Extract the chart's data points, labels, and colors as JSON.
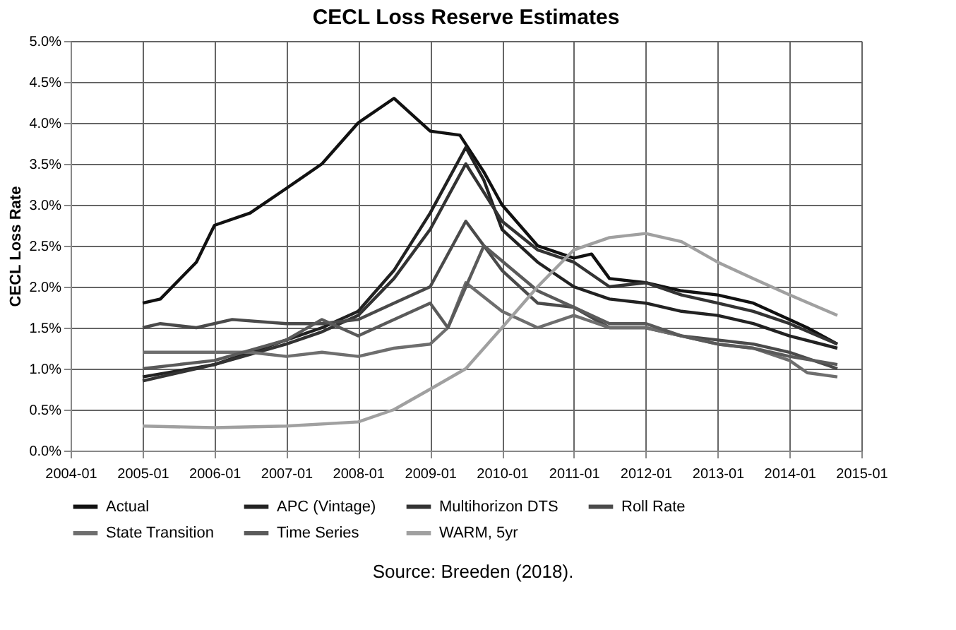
{
  "chart_data": {
    "type": "line",
    "title": "CECL Loss Reserve Estimates",
    "ylabel": "CECL Loss Rate",
    "annotations": [
      "Source: Breeden (2018)."
    ],
    "xlim": [
      "2004-01",
      "2015-01"
    ],
    "xticks": [
      "2004-01",
      "2005-01",
      "2006-01",
      "2007-01",
      "2008-01",
      "2009-01",
      "2010-01",
      "2011-01",
      "2012-01",
      "2013-01",
      "2014-01",
      "2015-01"
    ],
    "ylim": [
      0,
      5
    ],
    "yticks": [
      {
        "value": 0,
        "label": "0.0%"
      },
      {
        "value": 0.5,
        "label": "0.5%"
      },
      {
        "value": 1,
        "label": "1.0%"
      },
      {
        "value": 1.5,
        "label": "1.5%"
      },
      {
        "value": 2,
        "label": "2.0%"
      },
      {
        "value": 2.5,
        "label": "2.5%"
      },
      {
        "value": 3,
        "label": "3.0%"
      },
      {
        "value": 3.5,
        "label": "3.5%"
      },
      {
        "value": 4,
        "label": "4.0%"
      },
      {
        "value": 4.5,
        "label": "4.5%"
      },
      {
        "value": 5,
        "label": "5.0%"
      }
    ],
    "grid": true,
    "legend": "bottom",
    "line_style": "solid",
    "marker": "none",
    "series": [
      {
        "name": "Actual",
        "color": "#111111",
        "x": [
          "2005-01",
          "2005-04",
          "2005-10",
          "2006-01",
          "2006-07",
          "2007-01",
          "2007-07",
          "2008-01",
          "2008-07",
          "2009-01",
          "2009-06",
          "2009-10",
          "2010-01",
          "2010-07",
          "2011-01",
          "2011-04",
          "2011-07",
          "2012-01",
          "2012-07",
          "2013-01",
          "2013-07",
          "2014-01",
          "2014-04",
          "2014-09"
        ],
        "values": [
          1.8,
          1.85,
          2.3,
          2.75,
          2.9,
          3.2,
          3.5,
          4.0,
          4.3,
          3.9,
          3.85,
          3.4,
          3.0,
          2.5,
          2.35,
          2.4,
          2.1,
          2.05,
          1.95,
          1.9,
          1.8,
          1.6,
          1.5,
          1.3
        ]
      },
      {
        "name": "APC (Vintage)",
        "color": "#222222",
        "x": [
          "2005-01",
          "2006-01",
          "2007-01",
          "2007-07",
          "2008-01",
          "2008-07",
          "2009-01",
          "2009-07",
          "2009-10",
          "2010-01",
          "2010-07",
          "2011-01",
          "2011-07",
          "2012-01",
          "2012-07",
          "2013-01",
          "2013-07",
          "2014-01",
          "2014-09"
        ],
        "values": [
          0.9,
          1.05,
          1.35,
          1.5,
          1.7,
          2.2,
          2.9,
          3.7,
          3.3,
          2.7,
          2.3,
          2.0,
          1.85,
          1.8,
          1.7,
          1.65,
          1.55,
          1.4,
          1.25
        ]
      },
      {
        "name": "Multihorizon DTS",
        "color": "#333333",
        "x": [
          "2005-01",
          "2006-01",
          "2007-01",
          "2007-07",
          "2008-01",
          "2008-07",
          "2009-01",
          "2009-07",
          "2010-01",
          "2010-07",
          "2011-01",
          "2011-07",
          "2012-01",
          "2012-07",
          "2013-01",
          "2013-07",
          "2014-01",
          "2014-09"
        ],
        "values": [
          0.85,
          1.05,
          1.3,
          1.45,
          1.65,
          2.1,
          2.7,
          3.5,
          2.8,
          2.45,
          2.3,
          2.0,
          2.05,
          1.9,
          1.8,
          1.7,
          1.55,
          1.3
        ]
      },
      {
        "name": "Roll Rate",
        "color": "#4a4a4a",
        "x": [
          "2005-01",
          "2005-04",
          "2005-10",
          "2006-04",
          "2007-01",
          "2007-07",
          "2008-01",
          "2008-07",
          "2009-01",
          "2009-07",
          "2010-01",
          "2010-07",
          "2011-01",
          "2011-07",
          "2012-01",
          "2012-07",
          "2013-01",
          "2013-07",
          "2014-01",
          "2014-09"
        ],
        "values": [
          1.5,
          1.55,
          1.5,
          1.6,
          1.55,
          1.55,
          1.6,
          1.8,
          2.0,
          2.8,
          2.2,
          1.8,
          1.75,
          1.5,
          1.5,
          1.4,
          1.35,
          1.3,
          1.2,
          1.0
        ]
      },
      {
        "name": "State Transition",
        "color": "#6e6e6e",
        "x": [
          "2005-01",
          "2005-07",
          "2006-07",
          "2007-01",
          "2007-07",
          "2008-01",
          "2008-07",
          "2009-01",
          "2009-04",
          "2009-07",
          "2010-01",
          "2010-07",
          "2011-01",
          "2011-07",
          "2012-01",
          "2012-07",
          "2013-01",
          "2013-07",
          "2014-01",
          "2014-04",
          "2014-09"
        ],
        "values": [
          1.2,
          1.2,
          1.2,
          1.15,
          1.2,
          1.15,
          1.25,
          1.3,
          1.5,
          2.05,
          1.7,
          1.5,
          1.65,
          1.5,
          1.5,
          1.4,
          1.3,
          1.25,
          1.1,
          0.95,
          0.9
        ]
      },
      {
        "name": "Time Series",
        "color": "#5a5a5a",
        "x": [
          "2005-01",
          "2006-01",
          "2007-01",
          "2007-07",
          "2008-01",
          "2008-07",
          "2009-01",
          "2009-04",
          "2009-10",
          "2010-07",
          "2011-01",
          "2011-07",
          "2012-01",
          "2012-07",
          "2013-01",
          "2013-07",
          "2014-01",
          "2014-09"
        ],
        "values": [
          1.0,
          1.1,
          1.35,
          1.6,
          1.4,
          1.6,
          1.8,
          1.5,
          2.5,
          1.95,
          1.75,
          1.55,
          1.55,
          1.4,
          1.3,
          1.25,
          1.15,
          1.05
        ]
      },
      {
        "name": "WARM, 5yr",
        "color": "#a0a0a0",
        "x": [
          "2005-01",
          "2006-01",
          "2007-01",
          "2008-01",
          "2008-07",
          "2009-01",
          "2009-07",
          "2010-01",
          "2010-07",
          "2011-01",
          "2011-07",
          "2012-01",
          "2012-07",
          "2013-01",
          "2013-07",
          "2014-01",
          "2014-09"
        ],
        "values": [
          0.3,
          0.28,
          0.3,
          0.35,
          0.5,
          0.75,
          1.0,
          1.5,
          2.0,
          2.45,
          2.6,
          2.65,
          2.55,
          2.3,
          2.1,
          1.9,
          1.65
        ]
      }
    ]
  }
}
